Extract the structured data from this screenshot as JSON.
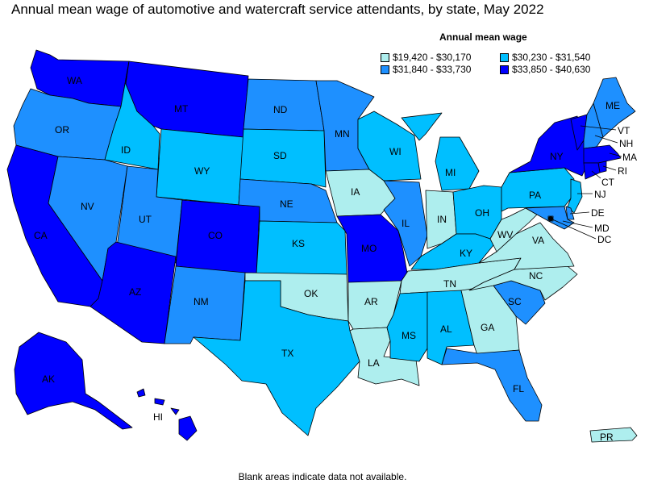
{
  "title": "Annual mean wage of automotive and watercraft service attendants, by state, May 2022",
  "legend": {
    "title": "Annual mean wage",
    "bins": [
      {
        "label": "$19,420 - $30,170",
        "color": "#aeeeee"
      },
      {
        "label": "$30,230 - $31,540",
        "color": "#00bfff"
      },
      {
        "label": "$31,840 - $33,730",
        "color": "#1e90ff"
      },
      {
        "label": "$33,850 - $40,630",
        "color": "#0000ff"
      }
    ]
  },
  "footnote": "Blank areas indicate data not available.",
  "states": {
    "WA": {
      "label": "WA",
      "bin": 3
    },
    "OR": {
      "label": "OR",
      "bin": 2
    },
    "CA": {
      "label": "CA",
      "bin": 3
    },
    "ID": {
      "label": "ID",
      "bin": 1
    },
    "NV": {
      "label": "NV",
      "bin": 2
    },
    "MT": {
      "label": "MT",
      "bin": 3
    },
    "WY": {
      "label": "WY",
      "bin": 1
    },
    "UT": {
      "label": "UT",
      "bin": 2
    },
    "AZ": {
      "label": "AZ",
      "bin": 3
    },
    "CO": {
      "label": "CO",
      "bin": 3
    },
    "NM": {
      "label": "NM",
      "bin": 2
    },
    "ND": {
      "label": "ND",
      "bin": 2
    },
    "SD": {
      "label": "SD",
      "bin": 1
    },
    "NE": {
      "label": "NE",
      "bin": 2
    },
    "KS": {
      "label": "KS",
      "bin": 1
    },
    "OK": {
      "label": "OK",
      "bin": 0
    },
    "TX": {
      "label": "TX",
      "bin": 1
    },
    "MN": {
      "label": "MN",
      "bin": 2
    },
    "IA": {
      "label": "IA",
      "bin": 0
    },
    "MO": {
      "label": "MO",
      "bin": 3
    },
    "AR": {
      "label": "AR",
      "bin": 0
    },
    "LA": {
      "label": "LA",
      "bin": 0
    },
    "WI": {
      "label": "WI",
      "bin": 1
    },
    "IL": {
      "label": "IL",
      "bin": 2
    },
    "MI": {
      "label": "MI",
      "bin": 1
    },
    "IN": {
      "label": "IN",
      "bin": 0
    },
    "OH": {
      "label": "OH",
      "bin": 1
    },
    "KY": {
      "label": "KY",
      "bin": 1
    },
    "TN": {
      "label": "TN",
      "bin": 0
    },
    "MS": {
      "label": "MS",
      "bin": 1
    },
    "AL": {
      "label": "AL",
      "bin": 1
    },
    "GA": {
      "label": "GA",
      "bin": 0
    },
    "FL": {
      "label": "FL",
      "bin": 2
    },
    "SC": {
      "label": "SC",
      "bin": 2
    },
    "NC": {
      "label": "NC",
      "bin": 0
    },
    "VA": {
      "label": "VA",
      "bin": 0
    },
    "WV": {
      "label": "WV",
      "bin": 0
    },
    "PA": {
      "label": "PA",
      "bin": 1
    },
    "NY": {
      "label": "NY",
      "bin": 3
    },
    "VT": {
      "label": "VT",
      "bin": 3
    },
    "NH": {
      "label": "NH",
      "bin": 2
    },
    "ME": {
      "label": "ME",
      "bin": 2
    },
    "MA": {
      "label": "MA",
      "bin": 3
    },
    "RI": {
      "label": "RI",
      "bin": 3
    },
    "CT": {
      "label": "CT",
      "bin": 3
    },
    "NJ": {
      "label": "NJ",
      "bin": 1
    },
    "DE": {
      "label": "DE",
      "bin": 2
    },
    "MD": {
      "label": "MD",
      "bin": 2
    },
    "DC": {
      "label": "DC",
      "bin": 2
    },
    "AK": {
      "label": "AK",
      "bin": 3
    },
    "HI": {
      "label": "HI",
      "bin": 3
    },
    "PR": {
      "label": "PR",
      "bin": 0
    }
  }
}
